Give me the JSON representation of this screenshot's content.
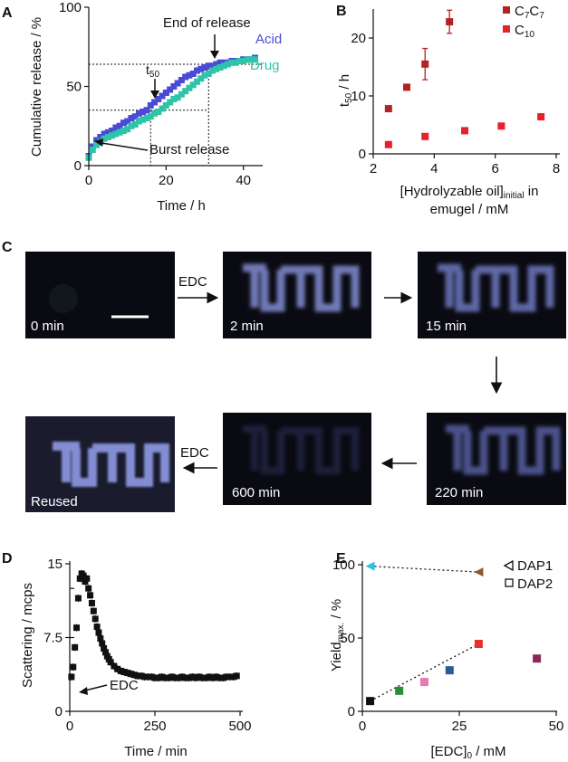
{
  "panels": {
    "A": {
      "label": "A",
      "chart_data": {
        "type": "scatter",
        "xlabel": "Time / h",
        "ylabel": "Cumulative release / %",
        "xlim": [
          0,
          45
        ],
        "ylim": [
          0,
          100
        ],
        "xticks": [
          "0",
          "20",
          "40"
        ],
        "yticks": [
          "0",
          "50",
          "100"
        ],
        "series": [
          {
            "name": "Acid",
            "color": "#4a4ad6",
            "x": [
              0,
              1,
              2,
              3,
              4,
              5,
              6,
              7,
              8,
              9,
              10,
              11,
              12,
              13,
              14,
              15,
              16,
              17,
              18,
              19,
              20,
              21,
              22,
              23,
              24,
              25,
              26,
              27,
              28,
              29,
              30,
              31,
              32,
              33,
              34,
              35,
              36,
              37,
              38,
              39,
              40,
              41,
              42,
              43
            ],
            "y": [
              6,
              12,
              16,
              18,
              20,
              21,
              22,
              24,
              25,
              27,
              28,
              30,
              31,
              33,
              34,
              35,
              38,
              40,
              42,
              44,
              46,
              48,
              50,
              52,
              54,
              56,
              57,
              58,
              60,
              61,
              62,
              63,
              63,
              64,
              65,
              65,
              65,
              66,
              66,
              66,
              67,
              67,
              67,
              68
            ]
          },
          {
            "name": "Drug",
            "color": "#2fc4a8",
            "x": [
              0,
              1,
              2,
              3,
              4,
              5,
              6,
              7,
              8,
              9,
              10,
              11,
              12,
              13,
              14,
              15,
              16,
              17,
              18,
              19,
              20,
              21,
              22,
              23,
              24,
              25,
              26,
              27,
              28,
              29,
              30,
              31,
              32,
              33,
              34,
              35,
              36,
              37,
              38,
              39,
              40,
              41,
              42,
              43
            ],
            "y": [
              5,
              10,
              13,
              15,
              17,
              18,
              19,
              20,
              21,
              22,
              23,
              25,
              26,
              28,
              29,
              30,
              31,
              33,
              34,
              36,
              38,
              40,
              42,
              43,
              45,
              47,
              49,
              51,
              53,
              55,
              57,
              58,
              60,
              61,
              62,
              63,
              64,
              65,
              65,
              66,
              66,
              67,
              67,
              67
            ]
          }
        ],
        "annotations": [
          {
            "text": "End of release"
          },
          {
            "text": "t50",
            "main": "t",
            "sub": "50"
          },
          {
            "text": "Burst release"
          }
        ],
        "reference_lines": {
          "y": [
            64,
            35
          ],
          "x": [
            16,
            31
          ]
        }
      }
    },
    "B": {
      "label": "B",
      "chart_data": {
        "type": "scatter",
        "xlabel_line1": "[Hydrolyzable oil]",
        "xlabel_sub": "initial",
        "xlabel_line1_end": " in",
        "xlabel_line2": "emugel / mM",
        "ylabel_main": "t",
        "ylabel_sub": "50",
        "ylabel_end": " / h",
        "xlim": [
          2,
          8
        ],
        "ylim": [
          0,
          25
        ],
        "xticks": [
          "2",
          "4",
          "6",
          "8"
        ],
        "yticks": [
          "0",
          "10",
          "20"
        ],
        "series": [
          {
            "name": "C7C7",
            "name_parts": [
              "C",
              "7",
              "C",
              "7"
            ],
            "color": "#b22222",
            "x": [
              2.5,
              3.1,
              3.7,
              4.5
            ],
            "y": [
              7.8,
              11.5,
              15.5,
              22.8
            ],
            "err": [
              0,
              0,
              2.7,
              2.0
            ]
          },
          {
            "name": "C10",
            "name_parts": [
              "C",
              "10"
            ],
            "color": "#e8202a",
            "x": [
              2.5,
              3.7,
              5.0,
              6.2,
              7.5
            ],
            "y": [
              1.6,
              3.0,
              4.0,
              4.8,
              6.4
            ],
            "err": [
              0,
              0,
              0,
              0,
              0
            ]
          }
        ]
      }
    },
    "C": {
      "label": "C",
      "frames": [
        {
          "caption": "0 min"
        },
        {
          "caption": "2 min"
        },
        {
          "caption": "15 min"
        },
        {
          "caption": "220 min"
        },
        {
          "caption": "600 min"
        },
        {
          "caption": "Reused"
        }
      ],
      "arrow_labels": [
        "EDC",
        "EDC"
      ],
      "logo_text": "TUM"
    },
    "D": {
      "label": "D",
      "chart_data": {
        "type": "scatter",
        "xlabel": "Time / min",
        "ylabel": "Scattering / mcps",
        "xlim": [
          0,
          500
        ],
        "ylim": [
          0,
          15
        ],
        "xticks": [
          "0",
          "250",
          "500"
        ],
        "yticks": [
          "0",
          "7.5",
          "15"
        ],
        "annotations": [
          {
            "text": "EDC"
          }
        ],
        "series": [
          {
            "name": "",
            "color": "#111111",
            "x": [
              5,
              10,
              15,
              20,
              25,
              30,
              35,
              40,
              45,
              50,
              55,
              60,
              65,
              70,
              75,
              80,
              85,
              90,
              95,
              100,
              105,
              110,
              115,
              120,
              130,
              140,
              150,
              160,
              170,
              180,
              190,
              200,
              210,
              220,
              230,
              240,
              250,
              260,
              270,
              280,
              290,
              300,
              310,
              320,
              330,
              340,
              350,
              360,
              370,
              380,
              390,
              400,
              410,
              420,
              430,
              440,
              450,
              460,
              470,
              480,
              490
            ],
            "y": [
              3.5,
              4.5,
              6.5,
              8.5,
              11.5,
              13.5,
              14.0,
              13.8,
              13.2,
              13.5,
              12.5,
              11.8,
              11.0,
              10.2,
              9.4,
              8.6,
              8.0,
              7.4,
              6.9,
              6.4,
              6.0,
              5.6,
              5.3,
              5.0,
              4.6,
              4.3,
              4.1,
              4.0,
              3.9,
              3.8,
              3.7,
              3.6,
              3.6,
              3.5,
              3.5,
              3.5,
              3.4,
              3.4,
              3.5,
              3.4,
              3.4,
              3.5,
              3.4,
              3.4,
              3.5,
              3.4,
              3.4,
              3.5,
              3.4,
              3.5,
              3.4,
              3.4,
              3.5,
              3.4,
              3.5,
              3.4,
              3.4,
              3.5,
              3.5,
              3.5,
              3.6
            ]
          }
        ]
      }
    },
    "E": {
      "label": "E",
      "chart_data": {
        "type": "scatter",
        "xlabel_main": "[EDC]",
        "xlabel_sub": "0",
        "xlabel_end": " / mM",
        "ylabel_main": "Yield",
        "ylabel_sub": "max.",
        "ylabel_end": " / %",
        "xlim": [
          0,
          50
        ],
        "ylim": [
          0,
          100
        ],
        "xticks": [
          "0",
          "25",
          "50"
        ],
        "yticks": [
          "0",
          "50",
          "100"
        ],
        "legend": [
          {
            "text": "DAP1",
            "marker": "triangle-left"
          },
          {
            "text": "DAP2",
            "marker": "square"
          }
        ],
        "series": [
          {
            "name": "DAP1",
            "points": [
              {
                "x": 2,
                "y": 99,
                "color": "#2bc3e0"
              },
              {
                "x": 30,
                "y": 95,
                "color": "#8b5a2b"
              }
            ]
          },
          {
            "name": "DAP2",
            "points": [
              {
                "x": 2,
                "y": 7,
                "color": "#111111"
              },
              {
                "x": 9.5,
                "y": 14,
                "color": "#2e8b3a"
              },
              {
                "x": 16,
                "y": 20,
                "color": "#e87ab0"
              },
              {
                "x": 22.5,
                "y": 28,
                "color": "#2a5b9a"
              },
              {
                "x": 30,
                "y": 46,
                "color": "#e8302a"
              },
              {
                "x": 45,
                "y": 36,
                "color": "#8a2a5a"
              }
            ]
          }
        ]
      }
    }
  }
}
